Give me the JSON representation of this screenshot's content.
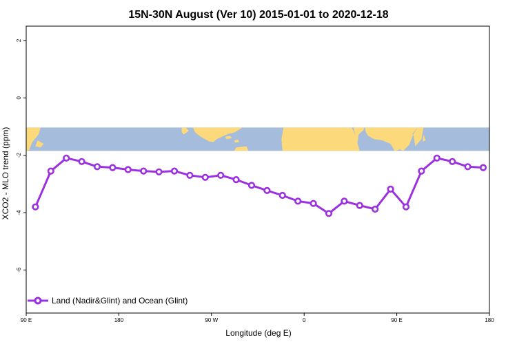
{
  "chart_data": {
    "type": "line",
    "title": "15N-30N August (Ver 10)   2015-01-01 to 2020-12-18",
    "xlabel": "Longitude (deg E)",
    "ylabel": "XCO2 - MLO trend (ppm)",
    "x_ticks": [
      {
        "value": 90,
        "label": "90 E"
      },
      {
        "value": 180,
        "label": "180"
      },
      {
        "value": 270,
        "label": "90 W"
      },
      {
        "value": 360,
        "label": "0"
      },
      {
        "value": 450,
        "label": "90 E"
      },
      {
        "value": 540,
        "label": "180"
      }
    ],
    "y_ticks": [
      2,
      0,
      -2,
      -4,
      -6
    ],
    "xlim": [
      90,
      540
    ],
    "ylim": [
      -7.5,
      2.5
    ],
    "grid": false,
    "legend_position": "bottom-left",
    "map_band": {
      "y_top": -1.03,
      "y_bottom": -1.85,
      "ocean_color": "#a5bcdc",
      "land_color": "#fcd97a"
    },
    "series": [
      {
        "name": "Land (Nadir&Glint) and Ocean (Glint)",
        "color": "#9b30e0",
        "x": [
          99,
          114,
          129,
          144,
          159,
          174,
          189,
          204,
          219,
          234,
          249,
          264,
          279,
          294,
          309,
          324,
          339,
          354,
          369,
          384,
          399,
          414,
          429,
          444,
          459,
          474,
          489,
          504,
          519,
          534
        ],
        "y": [
          -3.8,
          -2.55,
          -2.1,
          -2.22,
          -2.4,
          -2.43,
          -2.5,
          -2.55,
          -2.58,
          -2.55,
          -2.7,
          -2.77,
          -2.7,
          -2.85,
          -3.05,
          -3.23,
          -3.4,
          -3.6,
          -3.68,
          -4.03,
          -3.6,
          -3.75,
          -3.88,
          -3.18,
          -3.8,
          -2.55,
          -2.1,
          -2.22,
          -2.4,
          -2.43
        ]
      }
    ]
  }
}
